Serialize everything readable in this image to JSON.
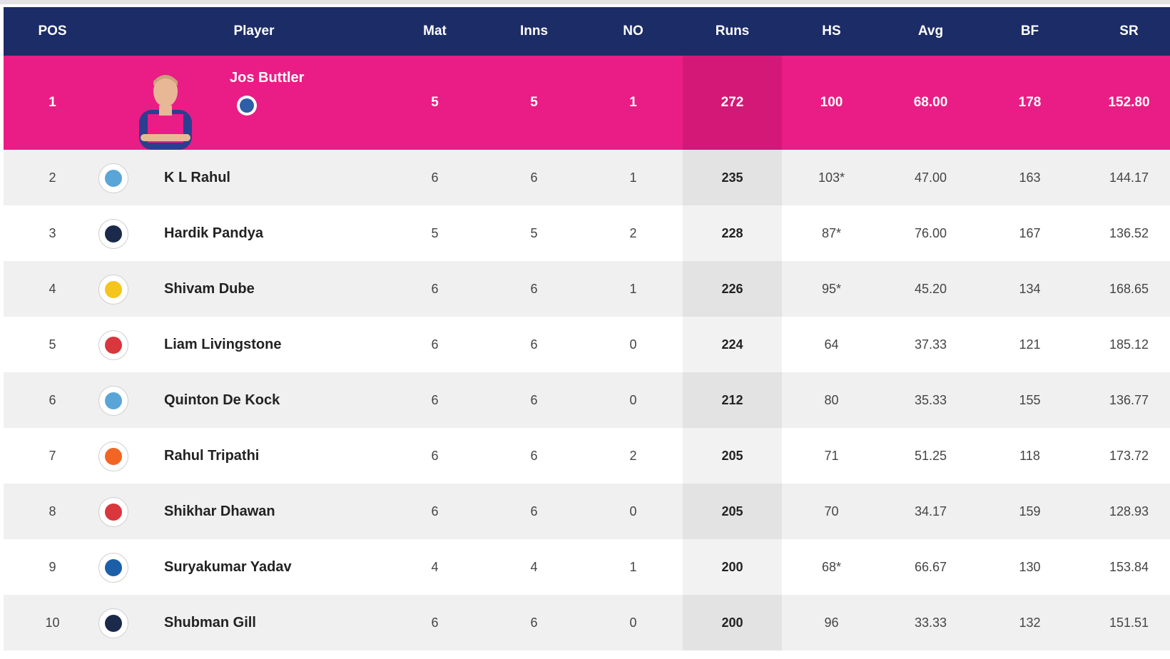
{
  "headers": {
    "pos": "POS",
    "player": "Player",
    "mat": "Mat",
    "inns": "Inns",
    "no": "NO",
    "runs": "Runs",
    "hs": "HS",
    "avg": "Avg",
    "bf": "BF",
    "sr": "SR"
  },
  "leader": {
    "pos": "1",
    "name": "Jos Buttler",
    "mat": "5",
    "inns": "5",
    "no": "1",
    "runs": "272",
    "hs": "100",
    "avg": "68.00",
    "bf": "178",
    "sr": "152.80"
  },
  "rows": [
    {
      "pos": "2",
      "name": "K L Rahul",
      "mat": "6",
      "inns": "6",
      "no": "1",
      "runs": "235",
      "hs": "103*",
      "avg": "47.00",
      "bf": "163",
      "sr": "144.17",
      "team_color": "#5aa5d8"
    },
    {
      "pos": "3",
      "name": "Hardik Pandya",
      "mat": "5",
      "inns": "5",
      "no": "2",
      "runs": "228",
      "hs": "87*",
      "avg": "76.00",
      "bf": "167",
      "sr": "136.52",
      "team_color": "#1b2a4a"
    },
    {
      "pos": "4",
      "name": "Shivam Dube",
      "mat": "6",
      "inns": "6",
      "no": "1",
      "runs": "226",
      "hs": "95*",
      "avg": "45.20",
      "bf": "134",
      "sr": "168.65",
      "team_color": "#f5c51e"
    },
    {
      "pos": "5",
      "name": "Liam Livingstone",
      "mat": "6",
      "inns": "6",
      "no": "0",
      "runs": "224",
      "hs": "64",
      "avg": "37.33",
      "bf": "121",
      "sr": "185.12",
      "team_color": "#d9363e"
    },
    {
      "pos": "6",
      "name": "Quinton De Kock",
      "mat": "6",
      "inns": "6",
      "no": "0",
      "runs": "212",
      "hs": "80",
      "avg": "35.33",
      "bf": "155",
      "sr": "136.77",
      "team_color": "#5aa5d8"
    },
    {
      "pos": "7",
      "name": "Rahul Tripathi",
      "mat": "6",
      "inns": "6",
      "no": "2",
      "runs": "205",
      "hs": "71",
      "avg": "51.25",
      "bf": "118",
      "sr": "173.72",
      "team_color": "#f26522"
    },
    {
      "pos": "8",
      "name": "Shikhar Dhawan",
      "mat": "6",
      "inns": "6",
      "no": "0",
      "runs": "205",
      "hs": "70",
      "avg": "34.17",
      "bf": "159",
      "sr": "128.93",
      "team_color": "#d9363e"
    },
    {
      "pos": "9",
      "name": "Suryakumar Yadav",
      "mat": "4",
      "inns": "4",
      "no": "1",
      "runs": "200",
      "hs": "68*",
      "avg": "66.67",
      "bf": "130",
      "sr": "153.84",
      "team_color": "#1c5fa8"
    },
    {
      "pos": "10",
      "name": "Shubman Gill",
      "mat": "6",
      "inns": "6",
      "no": "0",
      "runs": "200",
      "hs": "96",
      "avg": "33.33",
      "bf": "132",
      "sr": "151.51",
      "team_color": "#1b2a4a"
    }
  ],
  "colors": {
    "header_bg": "#1c2c66",
    "leader_bg": "#e91d85",
    "stripe": "#f0f0f0"
  },
  "icons": {
    "leader_photo": "player-photo-icon",
    "team": "team-logo-icon"
  }
}
